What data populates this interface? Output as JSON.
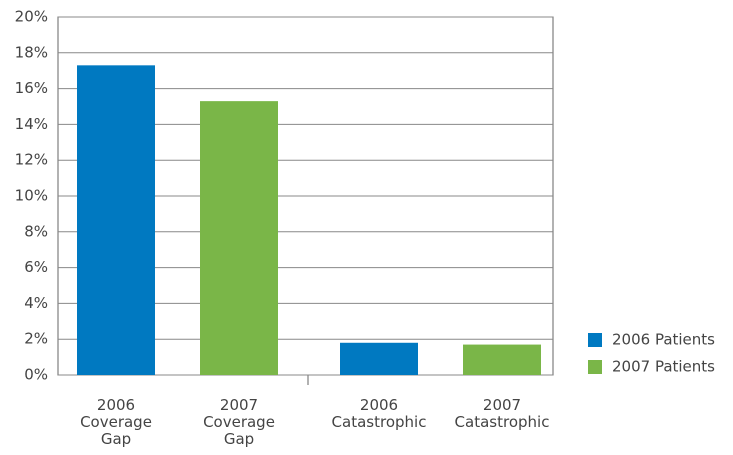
{
  "chart_data": {
    "type": "bar",
    "categories": [
      "2006 Coverage Gap",
      "2007 Coverage Gap",
      "2006 Catastrophic",
      "2007 Catastrophic"
    ],
    "series": [
      {
        "name": "2006 Patients",
        "color": "#0079c1",
        "values": [
          17.3,
          null,
          1.8,
          null
        ]
      },
      {
        "name": "2007 Patients",
        "color": "#7ab648",
        "values": [
          null,
          15.3,
          null,
          1.7
        ]
      }
    ],
    "ylim": [
      0,
      20
    ],
    "yticks": [
      {
        "value": 0,
        "label": "0%"
      },
      {
        "value": 2,
        "label": "2%"
      },
      {
        "value": 4,
        "label": "4%"
      },
      {
        "value": 6,
        "label": "6%"
      },
      {
        "value": 8,
        "label": "8%"
      },
      {
        "value": 10,
        "label": "10%"
      },
      {
        "value": 12,
        "label": "12%"
      },
      {
        "value": 14,
        "label": "14%"
      },
      {
        "value": 16,
        "label": "16%"
      },
      {
        "value": 18,
        "label": "18%"
      },
      {
        "value": 20,
        "label": "20%"
      }
    ],
    "grid": true,
    "legend": "bottom-right"
  }
}
